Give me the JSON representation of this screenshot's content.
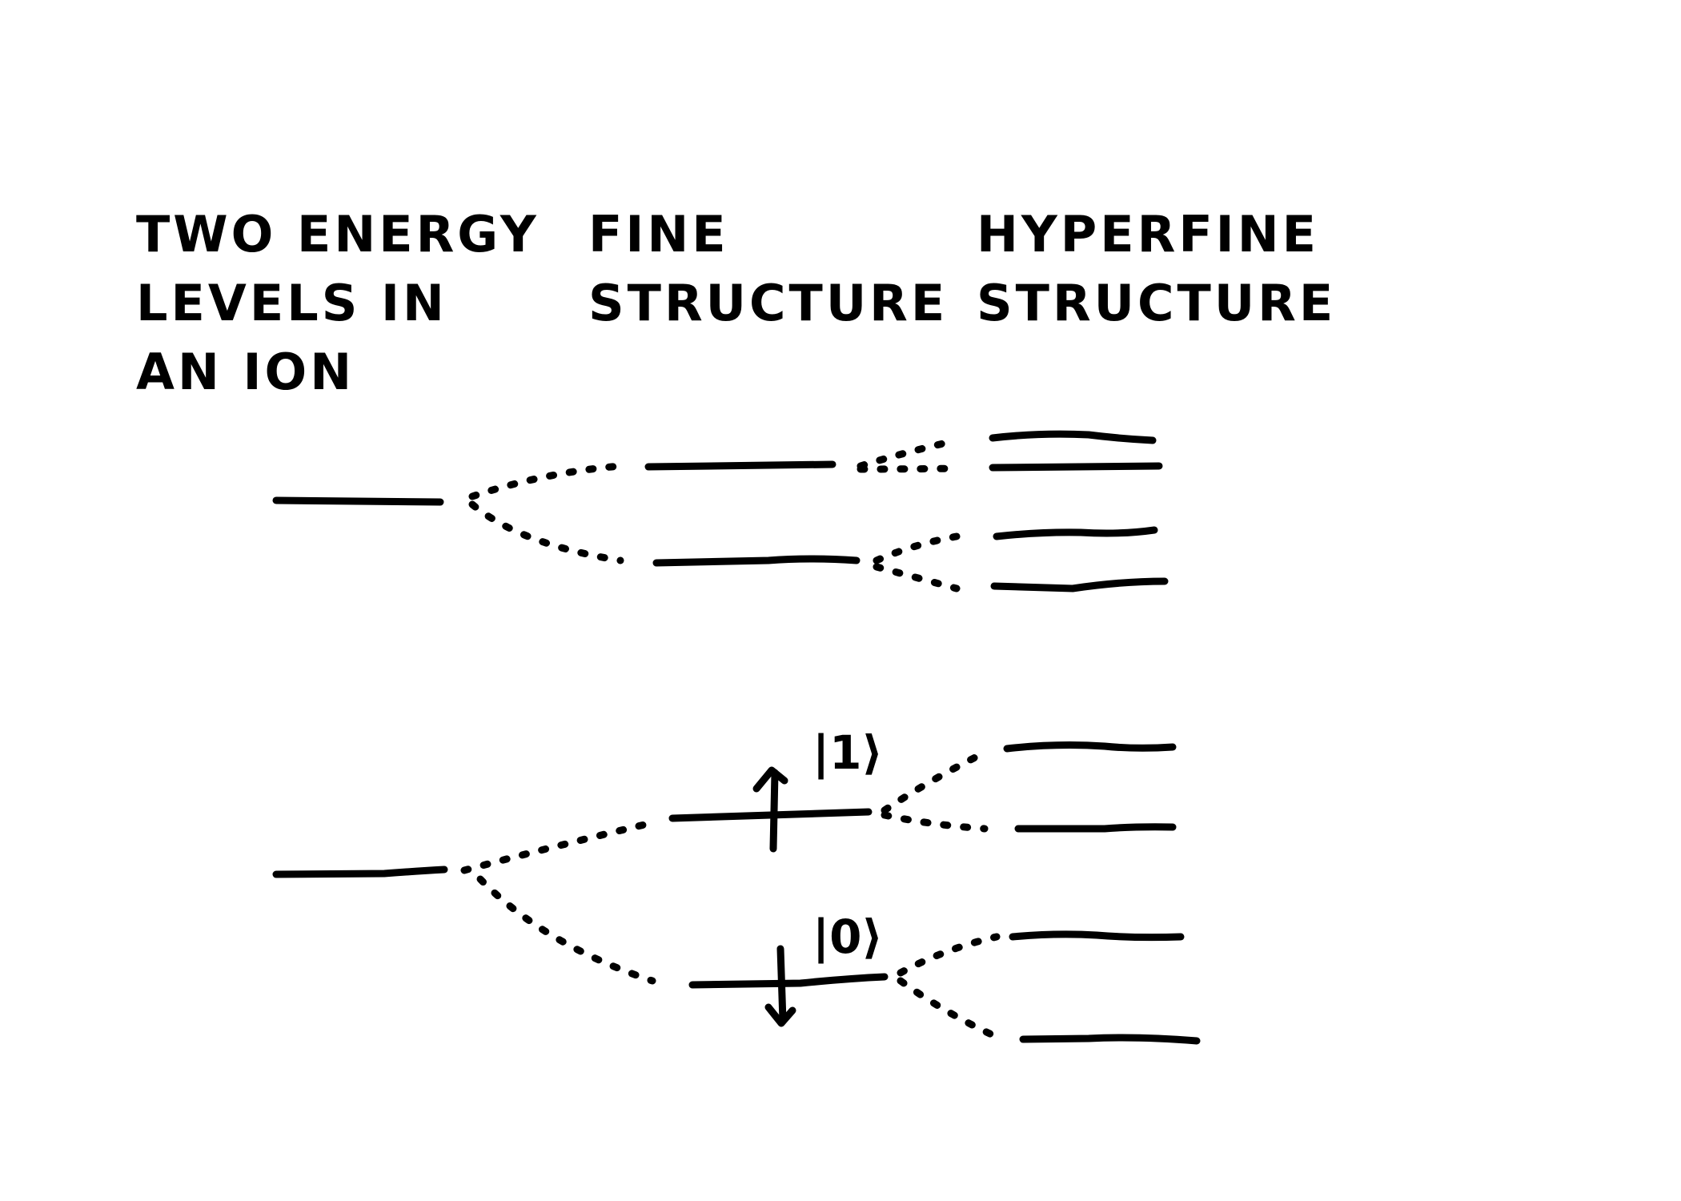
{
  "columns": {
    "ion": {
      "lines": [
        "TWO ENERGY",
        "LEVELS IN",
        "AN ION"
      ]
    },
    "fine": {
      "lines": [
        "FINE",
        "STRUCTURE"
      ]
    },
    "hyperfine": {
      "lines": [
        "HYPERFINE",
        "STRUCTURE"
      ]
    }
  },
  "states": {
    "upper": "|1⟩",
    "lower": "|0⟩"
  },
  "colors": {
    "ink": "#000000",
    "background": "#ffffff"
  }
}
